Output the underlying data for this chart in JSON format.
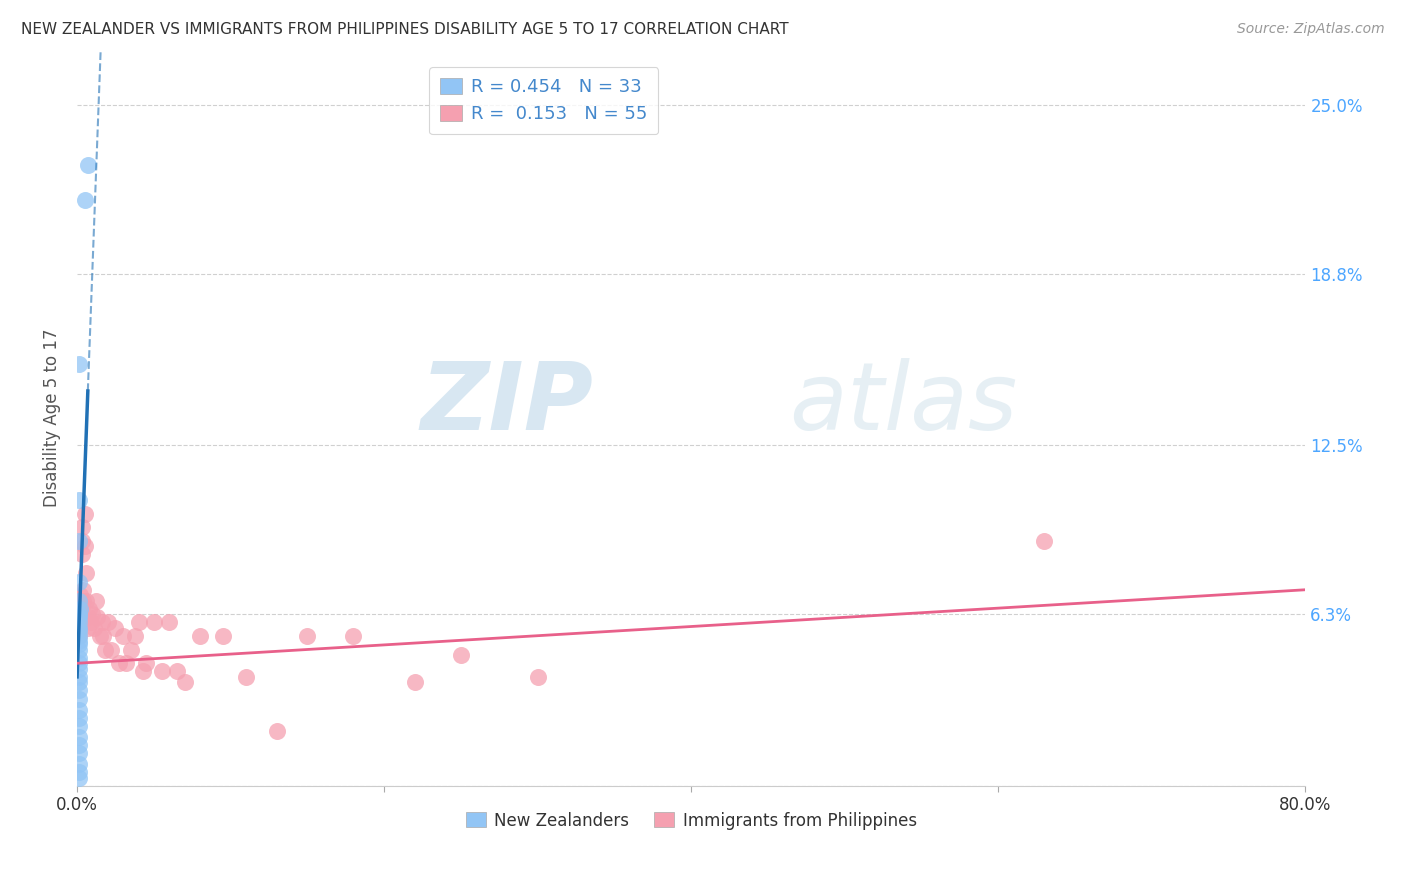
{
  "title": "NEW ZEALANDER VS IMMIGRANTS FROM PHILIPPINES DISABILITY AGE 5 TO 17 CORRELATION CHART",
  "source": "Source: ZipAtlas.com",
  "ylabel": "Disability Age 5 to 17",
  "xlim": [
    0,
    0.8
  ],
  "ylim": [
    0.0,
    0.27
  ],
  "yticks": [
    0.0,
    0.063,
    0.125,
    0.188,
    0.25
  ],
  "ytick_labels": [
    "",
    "6.3%",
    "12.5%",
    "18.8%",
    "25.0%"
  ],
  "xticks": [
    0.0,
    0.2,
    0.4,
    0.6,
    0.8
  ],
  "xtick_labels": [
    "0.0%",
    "",
    "",
    "",
    "80.0%"
  ],
  "nz_R": "0.454",
  "nz_N": "33",
  "ph_R": "0.153",
  "ph_N": "55",
  "nz_color": "#92c5f5",
  "ph_color": "#f5a0b0",
  "nz_line_color": "#2171b5",
  "ph_line_color": "#e8608a",
  "background_color": "#ffffff",
  "grid_color": "#d0d0d0",
  "watermark_zip": "ZIP",
  "watermark_atlas": "atlas",
  "nz_scatter_x": [
    0.005,
    0.007,
    0.001,
    0.001,
    0.0015,
    0.001,
    0.001,
    0.002,
    0.001,
    0.001,
    0.001,
    0.001,
    0.001,
    0.001,
    0.001,
    0.001,
    0.001,
    0.001,
    0.001,
    0.001,
    0.001,
    0.001,
    0.001,
    0.001,
    0.001,
    0.001,
    0.001,
    0.001,
    0.001,
    0.001,
    0.001,
    0.001,
    0.001
  ],
  "nz_scatter_y": [
    0.215,
    0.228,
    0.155,
    0.105,
    0.09,
    0.075,
    0.068,
    0.065,
    0.063,
    0.062,
    0.06,
    0.058,
    0.057,
    0.055,
    0.053,
    0.052,
    0.05,
    0.047,
    0.045,
    0.043,
    0.04,
    0.038,
    0.035,
    0.032,
    0.028,
    0.025,
    0.022,
    0.018,
    0.015,
    0.012,
    0.008,
    0.005,
    0.003
  ],
  "ph_scatter_x": [
    0.001,
    0.001,
    0.001,
    0.001,
    0.002,
    0.002,
    0.002,
    0.002,
    0.003,
    0.003,
    0.003,
    0.004,
    0.004,
    0.005,
    0.005,
    0.006,
    0.006,
    0.007,
    0.007,
    0.008,
    0.009,
    0.01,
    0.011,
    0.012,
    0.013,
    0.015,
    0.016,
    0.017,
    0.018,
    0.02,
    0.022,
    0.025,
    0.027,
    0.03,
    0.032,
    0.035,
    0.038,
    0.04,
    0.043,
    0.045,
    0.05,
    0.055,
    0.06,
    0.065,
    0.07,
    0.08,
    0.095,
    0.11,
    0.13,
    0.15,
    0.18,
    0.22,
    0.25,
    0.3,
    0.63
  ],
  "ph_scatter_y": [
    0.065,
    0.062,
    0.058,
    0.055,
    0.07,
    0.068,
    0.065,
    0.062,
    0.095,
    0.09,
    0.085,
    0.072,
    0.068,
    0.1,
    0.088,
    0.078,
    0.068,
    0.062,
    0.058,
    0.065,
    0.06,
    0.063,
    0.058,
    0.068,
    0.062,
    0.055,
    0.06,
    0.055,
    0.05,
    0.06,
    0.05,
    0.058,
    0.045,
    0.055,
    0.045,
    0.05,
    0.055,
    0.06,
    0.042,
    0.045,
    0.06,
    0.042,
    0.06,
    0.042,
    0.038,
    0.055,
    0.055,
    0.04,
    0.02,
    0.055,
    0.055,
    0.038,
    0.048,
    0.04,
    0.09
  ],
  "nz_trendline_x": [
    0.0,
    0.007,
    0.009,
    0.015,
    0.022
  ],
  "nz_trendline_y_solid_end": 0.007,
  "ph_trendline_start_y": 0.045,
  "ph_trendline_end_y": 0.072
}
